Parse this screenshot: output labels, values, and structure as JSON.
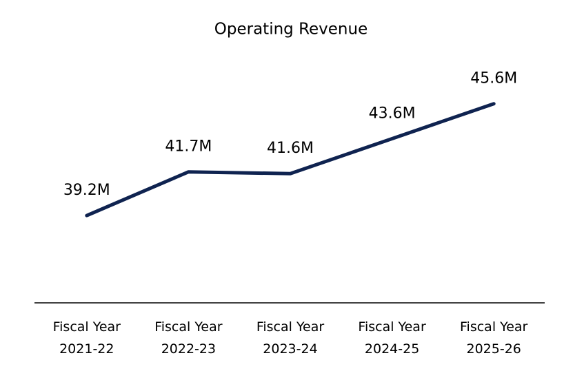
{
  "chart_data": {
    "type": "line",
    "title": "Operating Revenue",
    "categories": [
      "Fiscal Year 2021-22",
      "Fiscal Year 2022-23",
      "Fiscal Year 2023-24",
      "Fiscal Year 2024-25",
      "Fiscal Year 2025-26"
    ],
    "series": [
      {
        "name": "Operating Revenue",
        "color": "#0f2350",
        "values": [
          39.2,
          41.7,
          41.6,
          43.6,
          45.6
        ],
        "value_labels": [
          "39.2M",
          "41.7M",
          "41.6M",
          "43.6M",
          "45.6M"
        ]
      }
    ],
    "ylim": [
      34.2,
      47.6
    ]
  }
}
